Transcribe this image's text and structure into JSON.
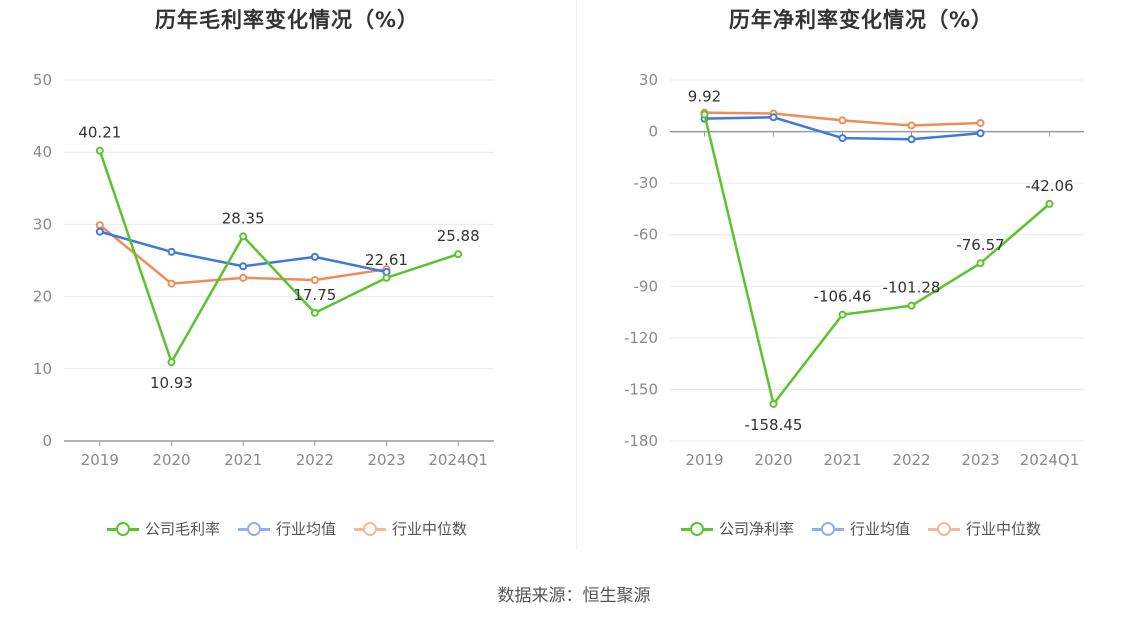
{
  "source": "数据来源：恒生聚源",
  "chart_data": [
    {
      "type": "line",
      "title": "历年毛利率变化情况（%）",
      "categories": [
        "2019",
        "2020",
        "2021",
        "2022",
        "2023",
        "2024Q1"
      ],
      "ylim": [
        0,
        50
      ],
      "yticks": [
        0,
        10,
        20,
        30,
        40,
        50
      ],
      "grid": true,
      "legend_position": "bottom-center",
      "series": [
        {
          "name": "公司毛利率",
          "color": "#5ac32e",
          "values": [
            40.21,
            10.93,
            28.35,
            17.75,
            22.61,
            25.88
          ],
          "labels": [
            "40.21",
            "10.93",
            "28.35",
            "17.75",
            "22.61",
            "25.88"
          ]
        },
        {
          "name": "行业均值",
          "color": "#3f78e0",
          "values": [
            29.0,
            26.2,
            24.2,
            25.5,
            23.4,
            null
          ]
        },
        {
          "name": "行业中位数",
          "color": "#f08c5a",
          "values": [
            29.9,
            21.8,
            22.6,
            22.3,
            23.8,
            null
          ]
        }
      ]
    },
    {
      "type": "line",
      "title": "历年净利率变化情况（%）",
      "categories": [
        "2019",
        "2020",
        "2021",
        "2022",
        "2023",
        "2024Q1"
      ],
      "ylim": [
        -180,
        30
      ],
      "yticks": [
        -180,
        -150,
        -120,
        -90,
        -60,
        -30,
        0,
        30
      ],
      "grid": true,
      "legend_position": "bottom-center",
      "series": [
        {
          "name": "公司净利率",
          "color": "#5ac32e",
          "values": [
            9.92,
            -158.45,
            -106.46,
            -101.28,
            -76.57,
            -42.06
          ],
          "labels": [
            "9.92",
            "-158.45",
            "-106.46",
            "-101.28",
            "-76.57",
            "-42.06"
          ]
        },
        {
          "name": "行业均值",
          "color": "#3f78e0",
          "values": [
            7.5,
            8.3,
            -3.8,
            -4.5,
            -1.0,
            null
          ]
        },
        {
          "name": "行业中位数",
          "color": "#f08c5a",
          "values": [
            11.0,
            10.5,
            6.5,
            3.5,
            5.0,
            null
          ]
        }
      ]
    }
  ]
}
